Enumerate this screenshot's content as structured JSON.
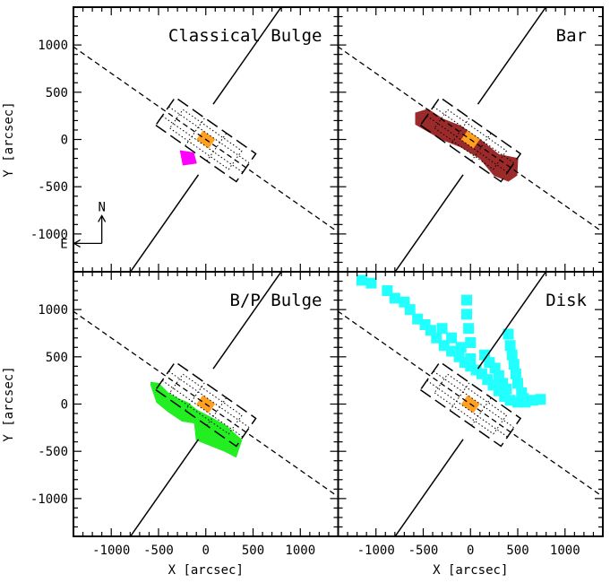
{
  "colors": {
    "classical_bulge": "#ff00ff",
    "bar": "#9b2a2a",
    "bp_bulge": "#22ee22",
    "disk": "#22ffff",
    "center": "#ffa020",
    "line": "#000000"
  },
  "axes": {
    "xlabel": "X [arcsec]",
    "ylabel": "Y [arcsec]",
    "xlim": [
      -1400,
      1400
    ],
    "ylim": [
      -1400,
      1400
    ],
    "xticks": [
      -1000,
      -500,
      0,
      500,
      1000
    ],
    "yticks": [
      -1000,
      -500,
      0,
      500,
      1000
    ]
  },
  "compass": {
    "north": "N",
    "east": "E"
  },
  "chart_data": [
    {
      "type": "scatter",
      "title": "Classical Bulge",
      "component_color": "#ff00ff",
      "region": [
        [
          -270,
          -120
        ],
        [
          -130,
          -140
        ],
        [
          -100,
          -250
        ],
        [
          -240,
          -270
        ]
      ],
      "points": []
    },
    {
      "type": "scatter",
      "title": "Bar",
      "component_color": "#9b2a2a",
      "region": [
        [
          -580,
          280
        ],
        [
          -450,
          320
        ],
        [
          -300,
          220
        ],
        [
          -100,
          140
        ],
        [
          100,
          0
        ],
        [
          300,
          -160
        ],
        [
          500,
          -200
        ],
        [
          490,
          -380
        ],
        [
          400,
          -440
        ],
        [
          250,
          -380
        ],
        [
          100,
          -200
        ],
        [
          -100,
          -80
        ],
        [
          -300,
          0
        ],
        [
          -580,
          160
        ]
      ],
      "points": []
    },
    {
      "type": "scatter",
      "title": "B/P Bulge",
      "component_color": "#22ee22",
      "region": [
        [
          -580,
          230
        ],
        [
          -500,
          220
        ],
        [
          -400,
          120
        ],
        [
          -300,
          60
        ],
        [
          -200,
          20
        ],
        [
          -100,
          -60
        ],
        [
          200,
          -220
        ],
        [
          380,
          -380
        ],
        [
          320,
          -560
        ],
        [
          200,
          -500
        ],
        [
          -100,
          -380
        ],
        [
          -120,
          -200
        ],
        [
          -250,
          -180
        ],
        [
          -400,
          -80
        ],
        [
          -520,
          20
        ],
        [
          -580,
          200
        ]
      ],
      "points": []
    },
    {
      "type": "scatter",
      "title": "Disk",
      "component_color": "#22ffff",
      "region": [],
      "points": [
        [
          -1150,
          1310
        ],
        [
          -1050,
          1280
        ],
        [
          -880,
          1200
        ],
        [
          -800,
          1120
        ],
        [
          -700,
          1080
        ],
        [
          -640,
          1000
        ],
        [
          -560,
          900
        ],
        [
          -480,
          840
        ],
        [
          -420,
          780
        ],
        [
          -360,
          700
        ],
        [
          -280,
          620
        ],
        [
          -200,
          560
        ],
        [
          -120,
          500
        ],
        [
          -60,
          440
        ],
        [
          0,
          400
        ],
        [
          60,
          360
        ],
        [
          120,
          320
        ],
        [
          180,
          260
        ],
        [
          240,
          200
        ],
        [
          300,
          140
        ],
        [
          360,
          80
        ],
        [
          420,
          40
        ],
        [
          500,
          20
        ],
        [
          580,
          20
        ],
        [
          660,
          40
        ],
        [
          740,
          50
        ],
        [
          -40,
          1100
        ],
        [
          -40,
          950
        ],
        [
          -20,
          800
        ],
        [
          0,
          650
        ],
        [
          0,
          480
        ],
        [
          150,
          520
        ],
        [
          200,
          440
        ],
        [
          260,
          380
        ],
        [
          300,
          300
        ],
        [
          340,
          220
        ],
        [
          380,
          160
        ],
        [
          400,
          740
        ],
        [
          420,
          620
        ],
        [
          440,
          520
        ],
        [
          460,
          420
        ],
        [
          480,
          320
        ],
        [
          500,
          220
        ],
        [
          540,
          120
        ],
        [
          560,
          60
        ],
        [
          -100,
          600
        ],
        [
          -200,
          700
        ],
        [
          -300,
          800
        ]
      ]
    }
  ]
}
